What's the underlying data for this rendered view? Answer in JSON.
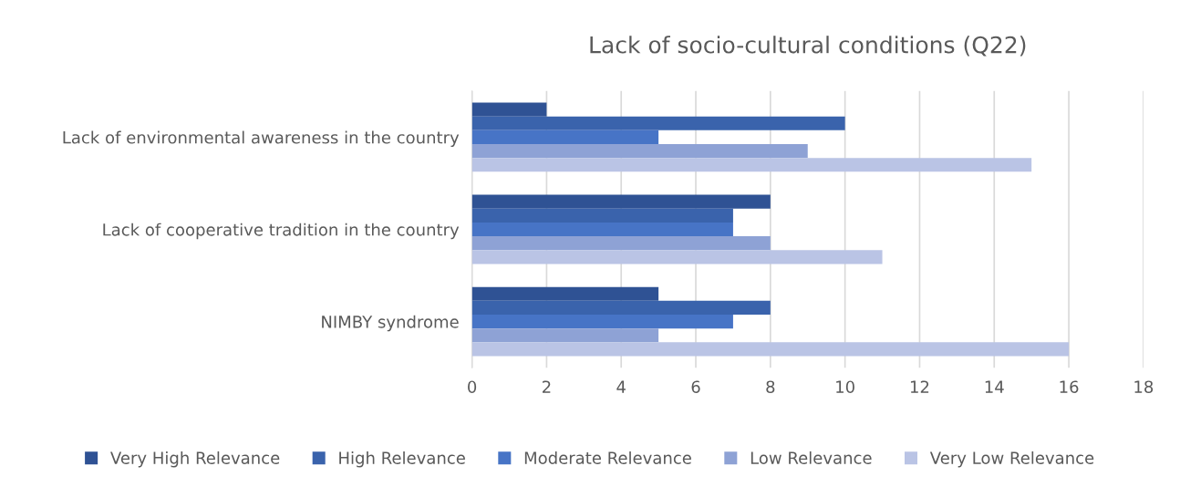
{
  "chart_data": {
    "type": "bar",
    "orientation": "horizontal",
    "title": "Lack of socio-cultural conditions (Q22)",
    "categories": [
      "Lack of environmental awareness in the country",
      "Lack of cooperative tradition in the country",
      "NIMBY syndrome"
    ],
    "series": [
      {
        "name": "Very High Relevance",
        "color": "#2f5294",
        "values": [
          2,
          8,
          5
        ]
      },
      {
        "name": "High Relevance",
        "color": "#3a63ac",
        "values": [
          10,
          7,
          8
        ]
      },
      {
        "name": "Moderate Relevance",
        "color": "#4774c6",
        "values": [
          5,
          7,
          7
        ]
      },
      {
        "name": "Low Relevance",
        "color": "#8ea2d5",
        "values": [
          9,
          8,
          5
        ]
      },
      {
        "name": "Very Low Relevance",
        "color": "#bac4e5",
        "values": [
          15,
          11,
          16
        ]
      }
    ],
    "xlim": [
      0,
      18
    ],
    "xticks": [
      0,
      2,
      4,
      6,
      8,
      10,
      12,
      14,
      16,
      18
    ],
    "grid": "x",
    "legend": "bottom"
  }
}
